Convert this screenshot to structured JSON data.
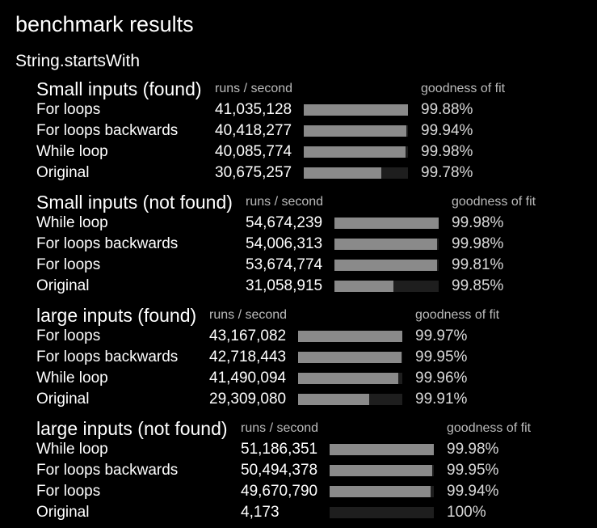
{
  "page_title": "benchmark results",
  "suite_title": "String.startsWith",
  "column_labels": {
    "rate": "runs / second",
    "fit": "goodness of fit"
  },
  "groups": [
    {
      "title": "Small inputs (found)",
      "rows": [
        {
          "name": "For loops",
          "rate": "41,035,128",
          "fraction": 1.0,
          "fit": "99.88%"
        },
        {
          "name": "For loops backwards",
          "rate": "40,418,277",
          "fraction": 0.985,
          "fit": "99.94%"
        },
        {
          "name": "While loop",
          "rate": "40,085,774",
          "fraction": 0.977,
          "fit": "99.98%"
        },
        {
          "name": "Original",
          "rate": "30,675,257",
          "fraction": 0.748,
          "fit": "99.78%"
        }
      ]
    },
    {
      "title": "Small inputs (not found)",
      "rows": [
        {
          "name": "While loop",
          "rate": "54,674,239",
          "fraction": 1.0,
          "fit": "99.98%"
        },
        {
          "name": "For loops backwards",
          "rate": "54,006,313",
          "fraction": 0.988,
          "fit": "99.98%"
        },
        {
          "name": "For loops",
          "rate": "53,674,774",
          "fraction": 0.982,
          "fit": "99.81%"
        },
        {
          "name": "Original",
          "rate": "31,058,915",
          "fraction": 0.568,
          "fit": "99.85%"
        }
      ]
    },
    {
      "title": "large inputs (found)",
      "rows": [
        {
          "name": "For loops",
          "rate": "43,167,082",
          "fraction": 1.0,
          "fit": "99.97%"
        },
        {
          "name": "For loops backwards",
          "rate": "42,718,443",
          "fraction": 0.99,
          "fit": "99.95%"
        },
        {
          "name": "While loop",
          "rate": "41,490,094",
          "fraction": 0.961,
          "fit": "99.96%"
        },
        {
          "name": "Original",
          "rate": "29,309,080",
          "fraction": 0.679,
          "fit": "99.91%"
        }
      ]
    },
    {
      "title": "large inputs (not found)",
      "rows": [
        {
          "name": "While loop",
          "rate": "51,186,351",
          "fraction": 1.0,
          "fit": "99.98%"
        },
        {
          "name": "For loops backwards",
          "rate": "50,494,378",
          "fraction": 0.986,
          "fit": "99.95%"
        },
        {
          "name": "For loops",
          "rate": "49,670,790",
          "fraction": 0.97,
          "fit": "99.94%"
        },
        {
          "name": "Original",
          "rate": "4,173",
          "fraction": 0.0001,
          "fit": "100%"
        }
      ]
    }
  ]
}
